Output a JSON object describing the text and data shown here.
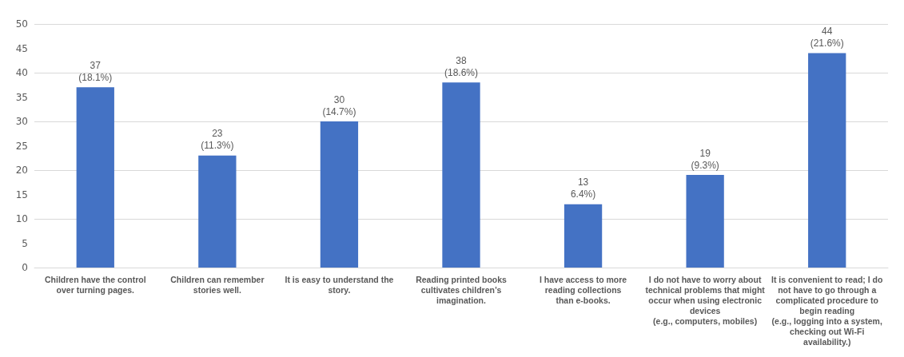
{
  "chart_data": {
    "type": "bar",
    "categories": [
      "Children have the control\nover turning pages.",
      "Children can remember\nstories well.",
      "It is easy to understand the\nstory.",
      "Reading printed books\ncultivates children’s\nimagination.",
      "I have access to more\nreading collections\nthan e-books.",
      "I do not have to worry about\ntechnical problems that might\noccur when using electronic\ndevices\n(e.g., computers, mobiles)",
      "It is convenient to read; I do\nnot have to go through a\ncomplicated procedure to\nbegin reading\n(e.g., logging into a system,\nchecking out Wi-Fi\navailability.)"
    ],
    "values": [
      37,
      23,
      30,
      38,
      13,
      19,
      44
    ],
    "value_labels": [
      "37\n(18.1%)",
      "23\n(11.3%)",
      "30\n(14.7%)",
      "38\n(18.6%)",
      "13\n6.4%)",
      "19\n(9.3%)",
      "44\n(21.6%)"
    ],
    "color": "#4472c4",
    "ylim": [
      0,
      50
    ],
    "yticks": [
      0,
      5,
      10,
      15,
      20,
      25,
      30,
      35,
      40,
      45,
      50
    ],
    "grid": "y"
  }
}
